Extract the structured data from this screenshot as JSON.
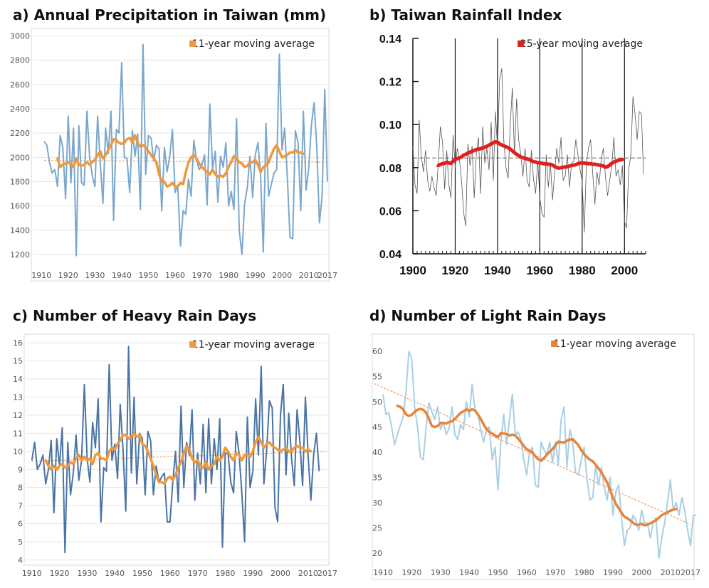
{
  "chart_data": [
    {
      "id": "a",
      "type": "line",
      "title": "a) Annual Precipitation in Taiwan (mm)",
      "legend": "11-year moving average",
      "legend_position": "top-right",
      "xlim": [
        1907,
        2017
      ],
      "ylim": [
        1100,
        3050
      ],
      "xticks": [
        1910,
        1920,
        1930,
        1940,
        1950,
        1960,
        1970,
        1980,
        1990,
        2000,
        2010,
        2017
      ],
      "yticks": [
        1200,
        1400,
        1600,
        1800,
        2000,
        2200,
        2400,
        2600,
        2800,
        3000
      ],
      "grid": true,
      "colors": {
        "raw": "#7ba7cc",
        "avg": "#f0983a",
        "trend": "#f0b070"
      },
      "raw": {
        "x_start": 1911,
        "values": [
          2130,
          2100,
          1960,
          1870,
          1900,
          1760,
          2180,
          2080,
          1660,
          2340,
          1790,
          2240,
          1190,
          2260,
          1790,
          1770,
          2380,
          2010,
          1850,
          1760,
          2340,
          1950,
          1620,
          2240,
          2030,
          2380,
          1480,
          2230,
          2200,
          2780,
          2000,
          1990,
          1710,
          2220,
          2010,
          2190,
          1570,
          2930,
          1860,
          2180,
          2160,
          1970,
          2100,
          2070,
          1560,
          2080,
          1880,
          2010,
          2230,
          1710,
          1770,
          1270,
          1560,
          1530,
          1820,
          1680,
          2140,
          1980,
          1900,
          1930,
          2020,
          1610,
          2440,
          1900,
          2050,
          1630,
          2010,
          1920,
          2120,
          1600,
          1720,
          1570,
          2320,
          1400,
          1200,
          1620,
          1750,
          2010,
          1670,
          2020,
          2120,
          1850,
          1220,
          2280,
          1680,
          1780,
          1870,
          1900,
          2850,
          2060,
          2240,
          1830,
          1340,
          1330,
          2220,
          2120,
          1560,
          2380,
          1730,
          1910,
          2270,
          2450,
          2090,
          1460,
          1680,
          2560,
          1800
        ]
      },
      "moving_average": {
        "x_start": 1916,
        "values": [
          1990,
          1920,
          1940,
          1950,
          1960,
          1940,
          1920,
          1990,
          1940,
          1930,
          1940,
          1960,
          1940,
          1960,
          1980,
          2020,
          2050,
          1990,
          2020,
          2060,
          2100,
          2150,
          2140,
          2120,
          2110,
          2120,
          2150,
          2160,
          2120,
          2180,
          2120,
          2090,
          2100,
          2080,
          2050,
          2020,
          1990,
          1960,
          1860,
          1800,
          1800,
          1760,
          1770,
          1790,
          1760,
          1760,
          1790,
          1780,
          1880,
          1960,
          2000,
          2020,
          1990,
          1950,
          1920,
          1900,
          1880,
          1860,
          1900,
          1860,
          1840,
          1850,
          1840,
          1870,
          1920,
          1960,
          2010,
          1990,
          1960,
          1950,
          1920,
          1930,
          1960,
          1960,
          1980,
          1940,
          1880,
          1920,
          1930,
          1960,
          2020,
          2070,
          2100,
          2050,
          2000,
          2010,
          2020,
          2040,
          2040,
          2060,
          2040,
          2040,
          2030
        ]
      },
      "trend": {
        "x": [
          1911,
          2017
        ],
        "y": [
          1975,
          1960
        ]
      }
    },
    {
      "id": "b",
      "type": "line",
      "title": "b) Taiwan Rainfall Index",
      "legend": "25-year moving average",
      "legend_position": "top-right",
      "xlim": [
        1900,
        2010
      ],
      "ylim": [
        0.04,
        0.14
      ],
      "xticks": [
        1900,
        1920,
        1940,
        1960,
        1980,
        2000
      ],
      "yticks": [
        "0.04",
        "0.06",
        "0.08",
        "0.10",
        "0.12",
        "0.14"
      ],
      "grid": false,
      "reference_line": 0.0845,
      "colors": {
        "raw": "#555555",
        "avg": "#e02020"
      },
      "raw": {
        "x_start": 1900,
        "values": [
          0.09,
          0.072,
          0.068,
          0.102,
          0.085,
          0.078,
          0.088,
          0.074,
          0.069,
          0.076,
          0.071,
          0.067,
          0.082,
          0.099,
          0.092,
          0.07,
          0.088,
          0.072,
          0.066,
          0.095,
          0.08,
          0.089,
          0.084,
          0.074,
          0.059,
          0.053,
          0.091,
          0.081,
          0.09,
          0.066,
          0.087,
          0.094,
          0.068,
          0.099,
          0.082,
          0.089,
          0.079,
          0.101,
          0.074,
          0.106,
          0.089,
          0.121,
          0.126,
          0.092,
          0.08,
          0.075,
          0.099,
          0.117,
          0.086,
          0.112,
          0.093,
          0.086,
          0.076,
          0.089,
          0.074,
          0.071,
          0.088,
          0.075,
          0.068,
          0.083,
          0.066,
          0.059,
          0.057,
          0.086,
          0.071,
          0.082,
          0.065,
          0.078,
          0.089,
          0.082,
          0.094,
          0.074,
          0.076,
          0.086,
          0.071,
          0.082,
          0.083,
          0.093,
          0.086,
          0.079,
          0.074,
          0.05,
          0.082,
          0.089,
          0.093,
          0.077,
          0.063,
          0.078,
          0.072,
          0.084,
          0.089,
          0.076,
          0.067,
          0.074,
          0.081,
          0.094,
          0.076,
          0.079,
          0.072,
          0.081,
          0.055,
          0.052,
          0.079,
          0.086,
          0.113,
          0.105,
          0.093,
          0.106,
          0.105,
          0.077
        ]
      },
      "moving_average": {
        "x_start": 1912,
        "values": [
          0.081,
          0.0815,
          0.0818,
          0.082,
          0.0825,
          0.0822,
          0.082,
          0.083,
          0.0838,
          0.0842,
          0.0846,
          0.085,
          0.0858,
          0.0862,
          0.0868,
          0.0872,
          0.0876,
          0.088,
          0.0884,
          0.0886,
          0.0888,
          0.0891,
          0.0895,
          0.0899,
          0.0905,
          0.091,
          0.0916,
          0.092,
          0.0918,
          0.091,
          0.0905,
          0.0901,
          0.0897,
          0.0893,
          0.0886,
          0.0878,
          0.087,
          0.0862,
          0.0856,
          0.085,
          0.0846,
          0.0844,
          0.084,
          0.0838,
          0.0832,
          0.0828,
          0.0826,
          0.0823,
          0.0822,
          0.082,
          0.0818,
          0.0817,
          0.0816,
          0.0816,
          0.0812,
          0.0806,
          0.08,
          0.0798,
          0.08,
          0.0802,
          0.0803,
          0.0805,
          0.0808,
          0.081,
          0.0812,
          0.0814,
          0.0818,
          0.0822,
          0.0822,
          0.0821,
          0.082,
          0.0818,
          0.0818,
          0.0816,
          0.0816,
          0.0814,
          0.0812,
          0.081,
          0.0808,
          0.0802,
          0.0805,
          0.0812,
          0.082,
          0.0826,
          0.083,
          0.0834,
          0.0836,
          0.0838
        ]
      }
    },
    {
      "id": "c",
      "type": "line",
      "title": "c) Number of Heavy Rain Days",
      "legend": "11-year moving average",
      "legend_position": "top-right",
      "xlim": [
        1908,
        2017
      ],
      "ylim": [
        3.9,
        16.4
      ],
      "xticks": [
        1910,
        1920,
        1930,
        1940,
        1950,
        1960,
        1970,
        1980,
        1990,
        2000,
        2010,
        2017
      ],
      "yticks": [
        4,
        5,
        6,
        7,
        8,
        9,
        10,
        11,
        12,
        13,
        14,
        15,
        16
      ],
      "grid": true,
      "colors": {
        "raw": "#4a74a4",
        "avg": "#f0983a",
        "trend": "#f0b070"
      },
      "raw": {
        "x_start": 1910,
        "values": [
          9.5,
          10.5,
          9.0,
          9.3,
          9.8,
          8.2,
          9.0,
          10.6,
          6.6,
          10.7,
          9.2,
          11.3,
          4.4,
          10.5,
          7.6,
          8.8,
          10.9,
          8.4,
          9.5,
          13.7,
          9.6,
          8.3,
          11.6,
          10.2,
          12.9,
          6.1,
          9.1,
          8.9,
          14.8,
          9.5,
          10.4,
          8.5,
          12.6,
          10.1,
          6.7,
          15.8,
          8.8,
          13.0,
          8.2,
          11.0,
          10.7,
          7.6,
          11.1,
          10.6,
          7.6,
          9.2,
          8.3,
          8.6,
          8.8,
          6.1,
          6.1,
          8.3,
          10.0,
          7.2,
          12.5,
          8.0,
          10.5,
          9.8,
          12.3,
          7.3,
          9.9,
          8.2,
          11.5,
          7.7,
          11.8,
          8.2,
          10.7,
          9.0,
          11.8,
          4.7,
          9.9,
          9.9,
          8.3,
          7.7,
          11.1,
          9.9,
          7.7,
          5.0,
          11.9,
          8.0,
          8.9,
          12.9,
          9.8,
          14.7,
          8.2,
          10.1,
          12.8,
          12.4,
          6.9,
          6.1,
          12.0,
          13.7,
          8.7,
          12.1,
          9.6,
          8.1,
          12.3,
          10.6,
          8.1,
          13.0,
          9.8,
          7.3,
          9.8,
          11.0,
          8.9
        ]
      },
      "moving_average": {
        "x_start": 1915,
        "values": [
          9.5,
          9.2,
          9.0,
          9.2,
          9.0,
          9.2,
          9.3,
          9.1,
          9.2,
          9.4,
          9.3,
          9.6,
          9.8,
          9.5,
          9.7,
          9.5,
          9.6,
          9.3,
          9.8,
          9.9,
          9.6,
          9.6,
          9.5,
          10.0,
          10.2,
          10.1,
          10.4,
          10.6,
          10.9,
          10.9,
          10.7,
          10.8,
          11.0,
          10.8,
          10.9,
          10.4,
          10.3,
          10.0,
          9.6,
          9.2,
          8.7,
          8.3,
          8.3,
          8.2,
          8.5,
          8.6,
          8.4,
          8.7,
          9.1,
          9.4,
          9.9,
          10.3,
          10.1,
          9.6,
          9.4,
          9.5,
          9.2,
          9.1,
          9.4,
          9.0,
          9.2,
          9.3,
          9.7,
          9.5,
          9.7,
          10.2,
          10.0,
          9.7,
          9.5,
          9.9,
          9.8,
          9.5,
          9.8,
          9.8,
          9.7,
          10.0,
          10.5,
          10.8,
          10.5,
          10.2,
          10.4,
          10.5,
          10.3,
          10.2,
          10.1,
          10.0,
          10.1,
          10.2,
          10.0,
          10.0,
          10.2,
          10.3,
          10.2,
          10.2,
          10.0,
          10.1,
          10.0
        ]
      },
      "trend": {
        "x": [
          1910,
          2017
        ],
        "y": [
          9.45,
          10.0
        ]
      }
    },
    {
      "id": "d",
      "type": "line",
      "title": "d) Number of Light Rain Days",
      "legend": "11-year moving average",
      "legend_position": "top-right",
      "xlim": [
        1908,
        2017
      ],
      "ylim": [
        18,
        62
      ],
      "xticks": [
        1910,
        1920,
        1930,
        1940,
        1950,
        1960,
        1970,
        1980,
        1990,
        2000,
        2010,
        2017
      ],
      "yticks": [
        20,
        25,
        30,
        35,
        40,
        45,
        50,
        55,
        60
      ],
      "grid": false,
      "colors": {
        "raw": "#a8cfe4",
        "avg": "#e8843a",
        "trend": "#f0a070"
      },
      "raw": {
        "x_start": 1910,
        "values": [
          51.5,
          47.5,
          47.8,
          45.0,
          41.5,
          43.5,
          45.3,
          47.0,
          52.0,
          60.0,
          58.5,
          49.0,
          45.0,
          39.0,
          38.5,
          45.0,
          49.8,
          48.0,
          46.5,
          49.0,
          44.5,
          46.0,
          43.5,
          44.7,
          49.0,
          43.5,
          42.5,
          45.5,
          44.5,
          50.0,
          47.0,
          53.5,
          48.5,
          47.5,
          44.5,
          42.0,
          44.5,
          45.0,
          38.5,
          41.0,
          32.5,
          42.0,
          47.5,
          41.5,
          46.5,
          51.5,
          43.5,
          44.0,
          42.5,
          38.5,
          35.5,
          40.0,
          41.0,
          33.5,
          33.0,
          42.0,
          40.5,
          39.5,
          42.0,
          38.0,
          42.0,
          37.5,
          46.5,
          49.0,
          37.0,
          44.5,
          42.0,
          36.0,
          35.5,
          38.5,
          41.0,
          34.5,
          30.5,
          31.0,
          37.5,
          33.5,
          37.0,
          33.0,
          30.5,
          35.0,
          27.5,
          32.0,
          33.5,
          27.0,
          21.5,
          24.5,
          25.0,
          27.5,
          26.5,
          24.5,
          28.5,
          26.0,
          26.0,
          23.0,
          26.0,
          27.0,
          19.0,
          23.0,
          26.0,
          30.0,
          34.5,
          28.5,
          30.0,
          27.5,
          31.0,
          28.5,
          24.5,
          21.5,
          27.5,
          27.5
        ]
      },
      "moving_average": {
        "x_start": 1915,
        "values": [
          49.2,
          49.0,
          48.5,
          47.5,
          47.2,
          47.4,
          48.0,
          48.4,
          48.6,
          48.4,
          47.8,
          46.6,
          45.2,
          45.0,
          45.2,
          45.8,
          45.8,
          45.7,
          46.0,
          46.1,
          46.6,
          47.2,
          47.8,
          48.1,
          48.5,
          48.2,
          48.5,
          48.3,
          47.5,
          46.6,
          45.5,
          44.6,
          44.0,
          43.7,
          43.3,
          43.0,
          43.8,
          43.7,
          43.6,
          43.3,
          43.5,
          43.3,
          42.7,
          42.0,
          41.2,
          40.6,
          40.3,
          40.0,
          39.2,
          38.6,
          38.3,
          38.8,
          39.5,
          40.1,
          40.6,
          41.4,
          42.1,
          42.0,
          41.9,
          42.3,
          42.5,
          42.6,
          42.0,
          41.4,
          40.4,
          39.6,
          39.0,
          38.5,
          38.2,
          37.5,
          36.8,
          36.0,
          35.0,
          34.0,
          32.5,
          31.0,
          29.8,
          28.9,
          28.0,
          27.2,
          26.9,
          26.5,
          26.0,
          25.6,
          25.6,
          25.8,
          25.5,
          25.6,
          25.9,
          26.2,
          26.5,
          27.0,
          27.5,
          27.8,
          28.1,
          28.4,
          28.6,
          28.7
        ]
      },
      "trend": {
        "x": [
          1907,
          2017
        ],
        "y": [
          53.6,
          25.7
        ]
      }
    }
  ]
}
